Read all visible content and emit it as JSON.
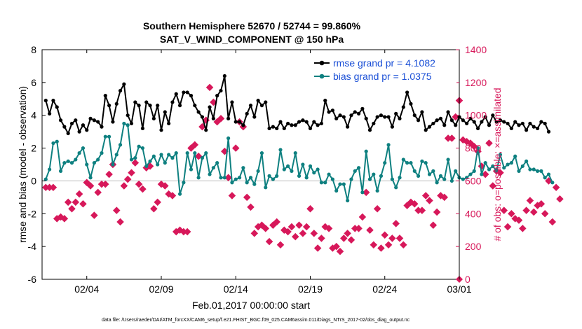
{
  "chart_data": {
    "type": "line",
    "title": "Southern Hemisphere 52670 / 52744 = 99.860%",
    "subtitle": "SAT_V_WIND_COMPONENT @ 150 hPa",
    "xlabel": "Feb.01,2017 00:00:00 start",
    "ylabel_left": "rmse and bias (model - observation)",
    "ylabel_right": "# of obs: o=possible; ×=assimilated",
    "footer": "data file: /Users/raeder/DAI/ATM_forcXX/CAM6_setup/f.e21.FHIST_BGC.f09_025.CAM6assim.011/Diags_NTrS_2017-02/obs_diag_output.nc",
    "xlim": [
      0.5,
      28.5
    ],
    "ylim_left": [
      -6,
      8
    ],
    "ylim_right": [
      0,
      1400
    ],
    "x_ticks": [
      3.5,
      8.5,
      13.5,
      18.5,
      23.5,
      28.5
    ],
    "x_tick_labels": [
      "02/04",
      "02/09",
      "02/14",
      "02/19",
      "02/24",
      "03/01"
    ],
    "y_ticks_left": [
      -6,
      -4,
      -2,
      0,
      2,
      4,
      6,
      8
    ],
    "y_ticks_right": [
      0,
      200,
      400,
      600,
      800,
      1000,
      1200,
      1400
    ],
    "zero_line": 0,
    "colors": {
      "rmse": "#000000",
      "bias": "#0e8080",
      "obs": "#d7185a",
      "legend_text": "#1a4fd6",
      "zero_line": "#bbbbbb"
    },
    "legend_position": "top-right",
    "series": [
      {
        "name": "rmse grand pr = 4.1082",
        "axis": "left",
        "values": [
          4.9,
          4.1,
          4.9,
          4.5,
          3.7,
          3.3,
          2.9,
          3.5,
          3.7,
          3.0,
          3.4,
          3.1,
          3.8,
          3.7,
          3.6,
          3.3,
          5.2,
          4.6,
          3.6,
          4.7,
          5.5,
          5.9,
          4.0,
          3.5,
          4.8,
          4.6,
          3.2,
          4.8,
          4.6,
          3.8,
          4.6,
          3.1,
          4.2,
          3.5,
          4.8,
          5.3,
          4.6,
          5.4,
          5.4,
          5.2,
          4.6,
          4.2,
          3.9,
          3.1,
          4.5,
          3.8,
          5.2,
          5.5,
          6.4,
          3.8,
          4.8,
          3.6,
          3.6,
          3.4,
          4.1,
          4.6,
          3.9,
          4.9,
          4.6,
          4.8,
          3.2,
          3.3,
          3.2,
          3.6,
          3.2,
          3.5,
          3.4,
          3.4,
          3.6,
          3.7,
          3.6,
          3.2,
          3.6,
          3.4,
          3.5,
          4.9,
          4.2,
          4.3,
          3.8,
          4.0,
          3.9,
          3.3,
          4.0,
          4.2,
          4.1,
          4.4,
          3.8,
          3.1,
          3.5,
          3.9,
          4.0,
          3.9,
          3.9,
          3.3,
          4.1,
          3.8,
          4.5,
          5.4,
          4.7,
          4.0,
          3.7,
          4.2,
          3.1,
          3.3,
          3.5,
          3.7,
          3.8,
          3.4,
          4.2,
          3.7,
          3.4,
          3.9,
          3.7,
          3.5,
          3.8,
          3.6,
          3.2,
          3.6,
          3.9,
          3.4,
          4.0,
          3.6,
          3.7,
          3.6,
          3.5,
          3.2,
          3.6,
          3.4,
          3.5,
          3.1,
          3.5,
          3.3,
          3.2,
          3.6,
          3.5,
          3.0
        ]
      },
      {
        "name": "bias grand pr = 1.0375",
        "axis": "left",
        "values": [
          0.1,
          0.7,
          2.3,
          2.4,
          0.6,
          1.1,
          1.2,
          1.1,
          1.3,
          1.7,
          2.0,
          1.0,
          0.2,
          1.1,
          1.3,
          1.7,
          2.7,
          2.7,
          1.0,
          1.6,
          2.2,
          3.5,
          3.4,
          1.3,
          1.4,
          2.1,
          2.0,
          0.9,
          1.2,
          1.5,
          1.0,
          1.6,
          1.1,
          1.6,
          1.4,
          1.7,
          -0.8,
          -0.1,
          1.7,
          0.7,
          1.7,
          0.2,
          1.4,
          1.7,
          0.4,
          0.8,
          1.1,
          0.2,
          0.2,
          2.6,
          -0.1,
          0.1,
          0.2,
          0.8,
          -0.1,
          0.2,
          -0.2,
          0.6,
          1.7,
          -0.4,
          0.3,
          0.1,
          0.3,
          1.9,
          0.7,
          0.9,
          0.6,
          1.7,
          0.3,
          1.0,
          0.2,
          0.9,
          0.5,
          0.7,
          -0.1,
          -0.1,
          0.4,
          0.1,
          -0.6,
          -0.2,
          -0.2,
          -1.2,
          0.1,
          0.6,
          0.8,
          -0.7,
          1.8,
          0.1,
          0.4,
          -0.6,
          0.3,
          1.1,
          2.2,
          0.1,
          -0.4,
          0.2,
          1.3,
          1.1,
          1.1,
          0.6,
          0.3,
          1.2,
          1.1,
          0.4,
          0.6,
          -0.1,
          0.3,
          0.1,
          1.3,
          0.0,
          0.6,
          0.2,
          0.1,
          0.2,
          0.4,
          0.6,
          2.0,
          0.4,
          1.1,
          0.7,
          0.9,
          0.6,
          1.6,
          0.8,
          1.0,
          1.1,
          1.5,
          0.6,
          0.9,
          1.2,
          0.7,
          0.7,
          0.6,
          0.6,
          0.2,
          0.4,
          -0.1
        ]
      },
      {
        "name": "assimilated",
        "axis": "right",
        "values": [
          560,
          560,
          560,
          370,
          380,
          370,
          470,
          430,
          470,
          520,
          460,
          590,
          570,
          390,
          530,
          580,
          580,
          640,
          700,
          420,
          350,
          570,
          610,
          650,
          710,
          580,
          550,
          680,
          690,
          430,
          470,
          580,
          570,
          520,
          510,
          290,
          300,
          290,
          290,
          800,
          820,
          750,
          930,
          970,
          1170,
          1080,
          960,
          980,
          780,
          620,
          510,
          800,
          960,
          930,
          500,
          440,
          280,
          320,
          330,
          310,
          230,
          330,
          350,
          210,
          300,
          290,
          320,
          260,
          330,
          280,
          320,
          430,
          280,
          190,
          250,
          320,
          310,
          190,
          200,
          170,
          250,
          280,
          240,
          310,
          310,
          380,
          530,
          300,
          210,
          430,
          190,
          270,
          210,
          250,
          340,
          250,
          210,
          450,
          470,
          460,
          420,
          420,
          510,
          480,
          330,
          410,
          510,
          500,
          860,
          860,
          990,
          1090,
          850,
          840,
          830,
          810,
          780,
          690,
          640,
          830,
          570,
          660,
          650,
          420,
          320,
          400,
          370,
          360,
          310,
          420,
          480,
          410,
          450,
          460,
          400,
          600,
          350,
          560,
          490
        ]
      }
    ]
  }
}
